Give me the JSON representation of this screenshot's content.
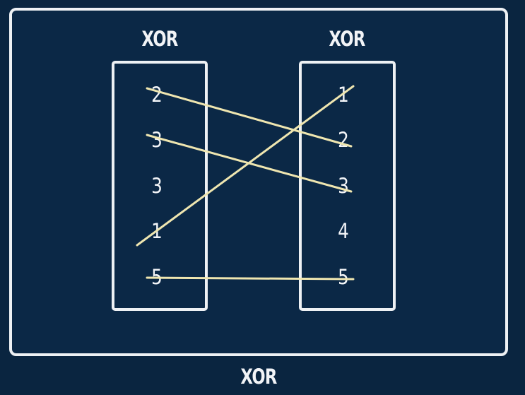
{
  "left_title": "XOR",
  "right_title": "XOR",
  "bottom_title": "XOR",
  "left_column": [
    "2",
    "3",
    "3",
    "1",
    "5"
  ],
  "right_column": [
    "1",
    "2",
    "3",
    "4",
    "5"
  ],
  "colors": {
    "background": "#0a2540",
    "frame": "#eef1f4",
    "text": "#f2f4f7",
    "connector": "#efe6b0"
  },
  "connections": [
    {
      "from_left_row": 0,
      "to_right_row": 1
    },
    {
      "from_left_row": 1,
      "to_right_row": 2
    },
    {
      "from_left_row": 3,
      "to_right_row": 0
    },
    {
      "from_left_row": 4,
      "to_right_row": 4
    }
  ]
}
